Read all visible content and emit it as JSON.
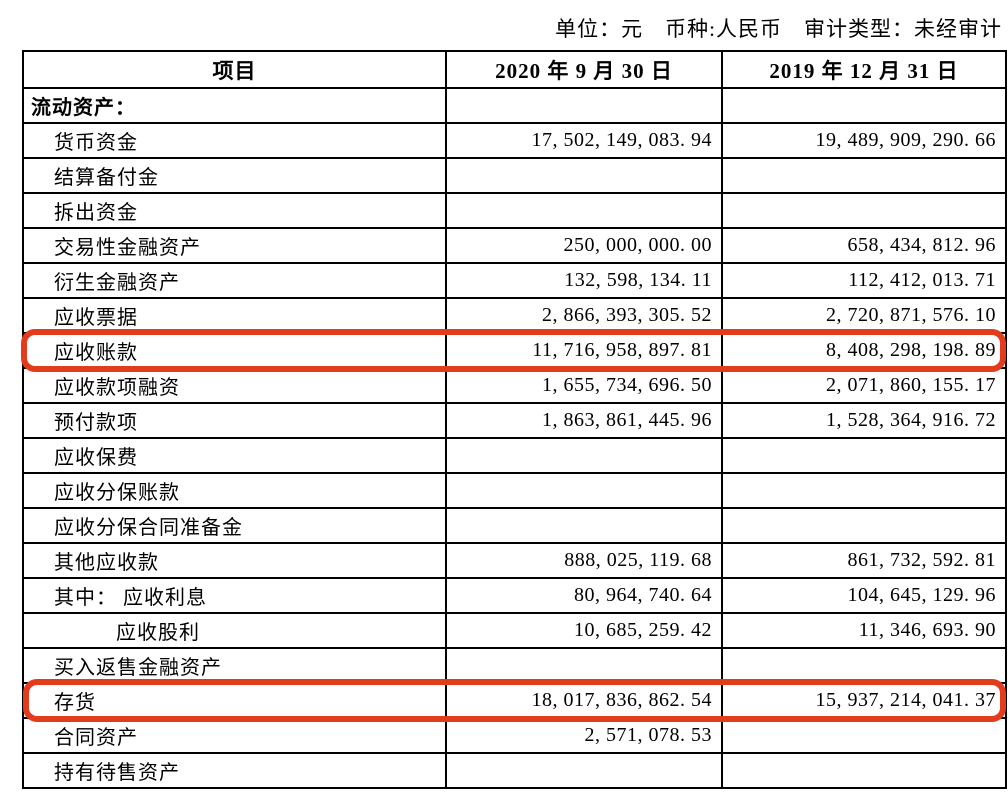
{
  "page": {
    "note": "单位：元　币种:人民币　审计类型：未经审计"
  },
  "table": {
    "columns": [
      "项目",
      "2020 年 9 月 30 日",
      "2019 年 12 月 31 日"
    ],
    "rows": [
      {
        "label": "流动资产：",
        "v2020": "",
        "v2019": "",
        "section": true,
        "indent": 0
      },
      {
        "label": "货币资金",
        "v2020": "17, 502, 149, 083. 94",
        "v2019": "19, 489, 909, 290. 66",
        "indent": 1
      },
      {
        "label": "结算备付金",
        "v2020": "",
        "v2019": "",
        "indent": 1
      },
      {
        "label": "拆出资金",
        "v2020": "",
        "v2019": "",
        "indent": 1
      },
      {
        "label": "交易性金融资产",
        "v2020": "250, 000, 000. 00",
        "v2019": "658, 434, 812. 96",
        "indent": 1
      },
      {
        "label": "衍生金融资产",
        "v2020": "132, 598, 134. 11",
        "v2019": "112, 412, 013. 71",
        "indent": 1
      },
      {
        "label": "应收票据",
        "v2020": "2, 866, 393, 305. 52",
        "v2019": "2, 720, 871, 576. 10",
        "indent": 1
      },
      {
        "label": "应收账款",
        "v2020": "11, 716, 958, 897. 81",
        "v2019": "8, 408, 298, 198. 89",
        "indent": 1,
        "highlighted": true
      },
      {
        "label": "应收款项融资",
        "v2020": "1, 655, 734, 696. 50",
        "v2019": "2, 071, 860, 155. 17",
        "indent": 1
      },
      {
        "label": "预付款项",
        "v2020": "1, 863, 861, 445. 96",
        "v2019": "1, 528, 364, 916. 72",
        "indent": 1
      },
      {
        "label": "应收保费",
        "v2020": "",
        "v2019": "",
        "indent": 1
      },
      {
        "label": "应收分保账款",
        "v2020": "",
        "v2019": "",
        "indent": 1
      },
      {
        "label": "应收分保合同准备金",
        "v2020": "",
        "v2019": "",
        "indent": 1
      },
      {
        "label": "其他应收款",
        "v2020": "888, 025, 119. 68",
        "v2019": "861, 732, 592. 81",
        "indent": 1
      },
      {
        "label": "其中： 应收利息",
        "v2020": "80, 964, 740. 64",
        "v2019": "104, 645, 129. 96",
        "indent": 1
      },
      {
        "label": "应收股利",
        "v2020": "10, 685, 259. 42",
        "v2019": "11, 346, 693. 90",
        "indent": 2
      },
      {
        "label": "买入返售金融资产",
        "v2020": "",
        "v2019": "",
        "indent": 1
      },
      {
        "label": "存货",
        "v2020": "18, 017, 836, 862. 54",
        "v2019": "15, 937, 214, 041. 37",
        "indent": 1,
        "highlighted": true
      },
      {
        "label": "合同资产",
        "v2020": "2, 571, 078. 53",
        "v2019": "",
        "indent": 1
      },
      {
        "label": "持有待售资产",
        "v2020": "",
        "v2019": "",
        "indent": 1
      }
    ]
  },
  "annotations": {
    "color": "#e23c1c",
    "boxes": [
      {
        "target_row": "应收账款"
      },
      {
        "target_row": "存货"
      }
    ]
  }
}
